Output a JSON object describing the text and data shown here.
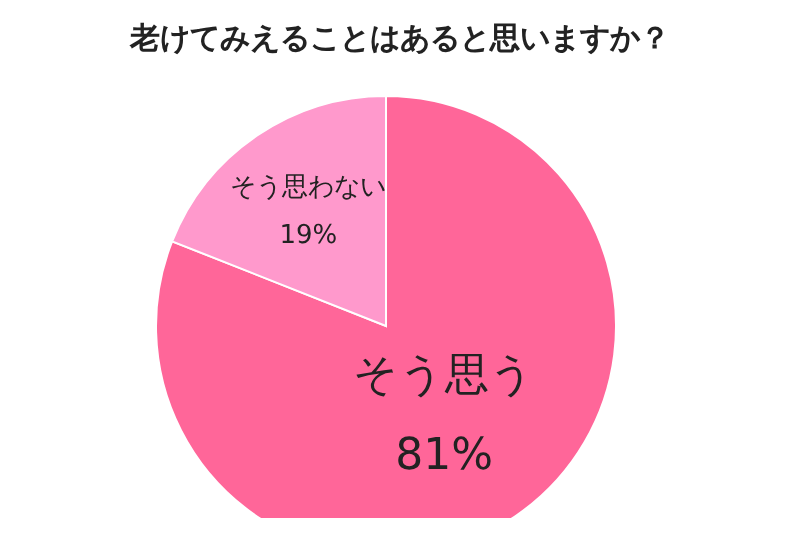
{
  "chart_data": {
    "type": "pie",
    "title": "老けてみえることはあると思いますか？",
    "categories": [
      "そう思う",
      "そう思わない"
    ],
    "values": [
      81,
      19
    ],
    "colors": [
      "#ff6699",
      "#ff99cc"
    ],
    "value_labels": [
      "81%",
      "19%"
    ],
    "legend": false
  }
}
